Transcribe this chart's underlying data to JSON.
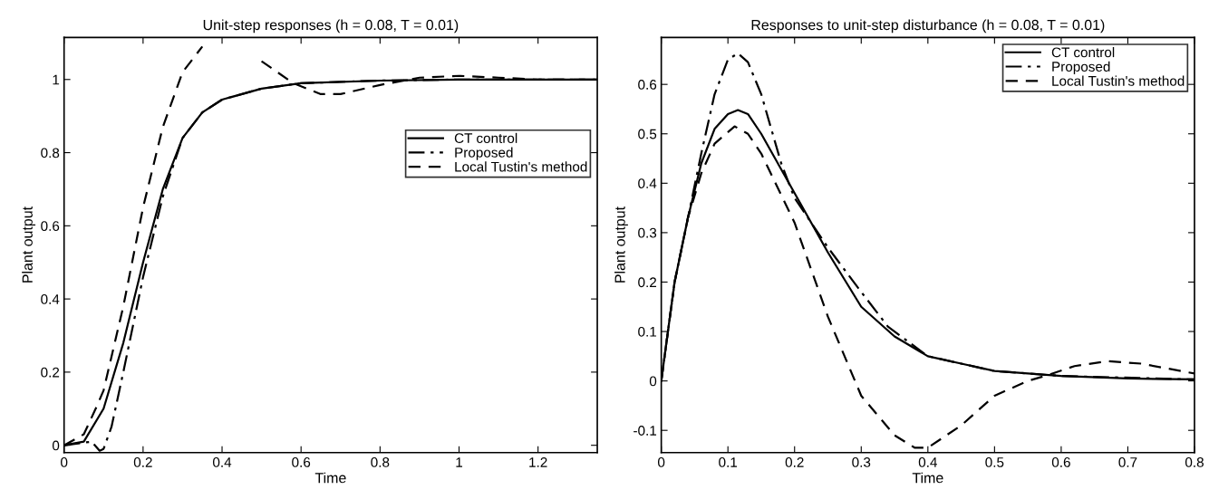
{
  "chart_data": [
    {
      "type": "line",
      "title": "Unit-step responses (h = 0.08, T = 0.01)",
      "xlabel": "Time",
      "ylabel": "Plant output",
      "xlim": [
        0,
        1.35
      ],
      "ylim": [
        -0.02,
        1.115
      ],
      "xticks": [
        0,
        0.2,
        0.4,
        0.6,
        0.8,
        1,
        1.2
      ],
      "yticks": [
        0,
        0.2,
        0.4,
        0.6,
        0.8,
        1
      ],
      "grid": false,
      "legend": "right",
      "marker": "none",
      "series": [
        {
          "name": "CT control",
          "color": "#000000",
          "line_style": "solid",
          "x": [
            0,
            0.05,
            0.1,
            0.15,
            0.2,
            0.25,
            0.3,
            0.35,
            0.4,
            0.5,
            0.6,
            0.8,
            1,
            1.35
          ],
          "values": [
            0,
            0.01,
            0.1,
            0.28,
            0.5,
            0.7,
            0.84,
            0.91,
            0.945,
            0.975,
            0.99,
            0.997,
            1,
            1
          ]
        },
        {
          "name": "Proposed",
          "color": "#000000",
          "line_style": "dashdot",
          "x": [
            0,
            0.07,
            0.09,
            0.1,
            0.12,
            0.15,
            0.2,
            0.25,
            0.3,
            0.35,
            0.4,
            0.5,
            0.6,
            0.8,
            1,
            1.35
          ],
          "values": [
            0,
            0.01,
            -0.015,
            -0.01,
            0.05,
            0.2,
            0.46,
            0.68,
            0.84,
            0.91,
            0.945,
            0.975,
            0.99,
            0.997,
            1,
            1
          ]
        },
        {
          "name": "Local Tustin's method",
          "color": "#000000",
          "line_style": "dashed",
          "x": [
            0,
            0.05,
            0.08,
            0.1,
            0.15,
            0.2,
            0.25,
            0.3,
            0.35,
            0.4,
            0.43,
            0.5,
            0.58,
            0.65,
            0.7,
            0.8,
            0.9,
            1,
            1.1,
            1.2,
            1.35
          ],
          "values": [
            0,
            0.03,
            0.1,
            0.15,
            0.38,
            0.65,
            0.87,
            1.02,
            1.09,
            null,
            null,
            1.05,
            0.99,
            0.96,
            0.96,
            0.985,
            1.005,
            1.01,
            1.005,
            1,
            1
          ]
        }
      ]
    },
    {
      "type": "line",
      "title": "Responses to unit-step disturbance (h = 0.08, T = 0.01)",
      "xlabel": "Time",
      "ylabel": "Plant output",
      "xlim": [
        0,
        0.8
      ],
      "ylim": [
        -0.145,
        0.695
      ],
      "xticks": [
        0,
        0.1,
        0.2,
        0.3,
        0.4,
        0.5,
        0.6,
        0.7,
        0.8
      ],
      "yticks": [
        -0.1,
        0,
        0.1,
        0.2,
        0.3,
        0.4,
        0.5,
        0.6
      ],
      "grid": false,
      "legend": "top right",
      "marker": "none",
      "series": [
        {
          "name": "CT control",
          "color": "#000000",
          "line_style": "solid",
          "x": [
            0,
            0.02,
            0.04,
            0.06,
            0.08,
            0.1,
            0.115,
            0.13,
            0.15,
            0.2,
            0.25,
            0.3,
            0.35,
            0.4,
            0.45,
            0.5,
            0.6,
            0.7,
            0.8
          ],
          "values": [
            0,
            0.2,
            0.33,
            0.44,
            0.51,
            0.54,
            0.548,
            0.54,
            0.5,
            0.38,
            0.26,
            0.15,
            0.09,
            0.05,
            0.035,
            0.02,
            0.01,
            0.005,
            0.003
          ]
        },
        {
          "name": "Proposed",
          "color": "#000000",
          "line_style": "dashdot",
          "x": [
            0,
            0.02,
            0.04,
            0.06,
            0.08,
            0.1,
            0.115,
            0.13,
            0.15,
            0.18,
            0.2,
            0.25,
            0.3,
            0.34,
            0.4,
            0.5,
            0.6,
            0.8
          ],
          "values": [
            0,
            0.2,
            0.33,
            0.46,
            0.58,
            0.65,
            0.663,
            0.645,
            0.58,
            0.44,
            0.37,
            0.27,
            0.18,
            0.11,
            0.05,
            0.02,
            0.01,
            0.003
          ]
        },
        {
          "name": "Local Tustin's method",
          "color": "#000000",
          "line_style": "dashed",
          "x": [
            0,
            0.02,
            0.04,
            0.06,
            0.08,
            0.11,
            0.13,
            0.15,
            0.2,
            0.25,
            0.3,
            0.35,
            0.38,
            0.4,
            0.45,
            0.5,
            0.55,
            0.58,
            0.62,
            0.67,
            0.72,
            0.8
          ],
          "values": [
            0,
            0.2,
            0.33,
            0.42,
            0.48,
            0.515,
            0.5,
            0.46,
            0.32,
            0.13,
            -0.03,
            -0.11,
            -0.135,
            -0.135,
            -0.09,
            -0.03,
            0,
            0.012,
            0.03,
            0.04,
            0.035,
            0.015
          ]
        }
      ]
    }
  ]
}
